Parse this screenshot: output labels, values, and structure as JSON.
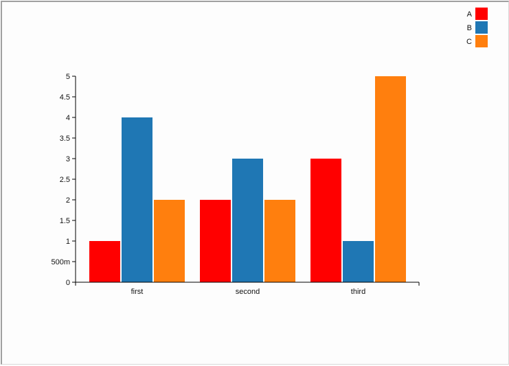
{
  "chart_data": {
    "type": "bar",
    "title": "",
    "xlabel": "",
    "ylabel": "",
    "categories": [
      "first",
      "second",
      "third"
    ],
    "series": [
      {
        "name": "A",
        "color": "#ff0000",
        "values": [
          1,
          2,
          3
        ]
      },
      {
        "name": "B",
        "color": "#1f77b4",
        "values": [
          4,
          3,
          1
        ]
      },
      {
        "name": "C",
        "color": "#ff7f0e",
        "values": [
          2,
          2,
          5
        ]
      }
    ],
    "ylim": [
      0,
      5
    ],
    "yticks": [
      {
        "value": 0,
        "label": "0"
      },
      {
        "value": 0.5,
        "label": "500m"
      },
      {
        "value": 1,
        "label": "1"
      },
      {
        "value": 1.5,
        "label": "1.5"
      },
      {
        "value": 2,
        "label": "2"
      },
      {
        "value": 2.5,
        "label": "2.5"
      },
      {
        "value": 3,
        "label": "3"
      },
      {
        "value": 3.5,
        "label": "3.5"
      },
      {
        "value": 4,
        "label": "4"
      },
      {
        "value": 4.5,
        "label": "4.5"
      },
      {
        "value": 5,
        "label": "5"
      }
    ],
    "grid": false,
    "legend_position": "top-right"
  }
}
